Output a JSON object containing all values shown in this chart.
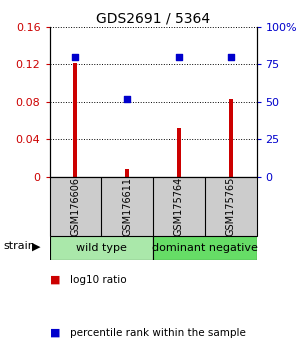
{
  "title": "GDS2691 / 5364",
  "samples": [
    "GSM176606",
    "GSM176611",
    "GSM175764",
    "GSM175765"
  ],
  "log10_ratio": [
    0.121,
    0.008,
    0.052,
    0.083
  ],
  "percentile_rank": [
    80,
    52,
    80,
    80
  ],
  "groups": [
    {
      "label": "wild type",
      "color": "#aae8aa",
      "indices": [
        0,
        1
      ]
    },
    {
      "label": "dominant negative",
      "color": "#66dd66",
      "indices": [
        2,
        3
      ]
    }
  ],
  "bar_color": "#cc0000",
  "dot_color": "#0000cc",
  "left_ylim": [
    0,
    0.16
  ],
  "right_ylim": [
    0,
    100
  ],
  "left_yticks": [
    0,
    0.04,
    0.08,
    0.12,
    0.16
  ],
  "right_yticks": [
    0,
    25,
    50,
    75,
    100
  ],
  "right_yticklabels": [
    "0",
    "25",
    "50",
    "75",
    "100%"
  ],
  "left_yticklabels": [
    "0",
    "0.04",
    "0.08",
    "0.12",
    "0.16"
  ],
  "left_tick_color": "#cc0000",
  "right_tick_color": "#0000cc",
  "sample_box_color": "#cccccc",
  "strain_label": "strain",
  "legend_log10": "log10 ratio",
  "legend_pct": "percentile rank within the sample",
  "bar_width": 0.08
}
